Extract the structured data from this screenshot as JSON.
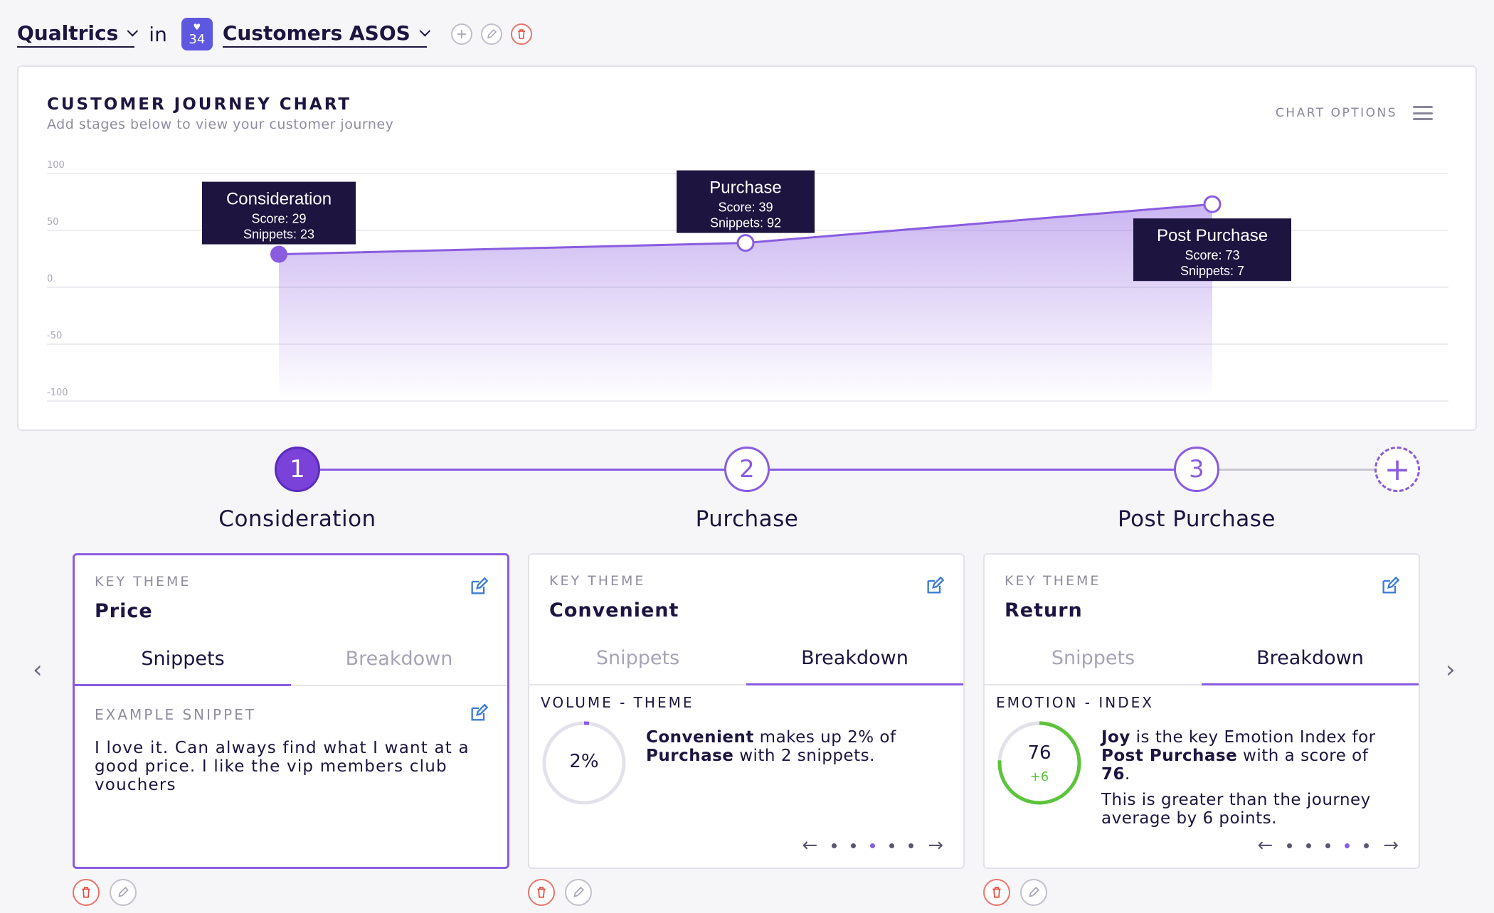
{
  "header": {
    "org": "Qualtrics",
    "in_word": "in",
    "badge_count": "34",
    "project": "Customers ASOS"
  },
  "chart": {
    "title": "CUSTOMER JOURNEY CHART",
    "subtitle": "Add stages below to view your customer journey",
    "options_label": "CHART OPTIONS"
  },
  "chart_data": {
    "type": "area",
    "title": "CUSTOMER JOURNEY CHART",
    "xlabel": "",
    "ylabel": "",
    "ylim": [
      -100,
      100
    ],
    "y_ticks": [
      "100",
      "50",
      "0",
      "-50",
      "-100"
    ],
    "categories": [
      "Consideration",
      "Purchase",
      "Post Purchase"
    ],
    "series": [
      {
        "values": [
          29,
          39,
          73
        ]
      }
    ],
    "annotations": [
      {
        "stage": "Consideration",
        "score_text": "Score: 29",
        "snippets_text": "Snippets: 23"
      },
      {
        "stage": "Purchase",
        "score_text": "Score: 39",
        "snippets_text": "Snippets: 92"
      },
      {
        "stage": "Post Purchase",
        "score_text": "Score: 73",
        "snippets_text": "Snippets: 7"
      }
    ],
    "grid": true,
    "accent": "#8a5ce0",
    "tooltip_bg": "#1d1440"
  },
  "stepper": {
    "steps": [
      {
        "num": "1",
        "label": "Consideration"
      },
      {
        "num": "2",
        "label": "Purchase"
      },
      {
        "num": "3",
        "label": "Post Purchase"
      }
    ],
    "add_symbol": "+"
  },
  "cards": [
    {
      "key_theme_label": "KEY THEME",
      "key_theme": "Price",
      "tabs": [
        "Snippets",
        "Breakdown"
      ],
      "active_tab": 0,
      "section_label": "EXAMPLE SNIPPET",
      "snippet": "I love it. Can always find what I want at a good price. I like the vip members club vouchers"
    },
    {
      "key_theme_label": "KEY THEME",
      "key_theme": "Convenient",
      "tabs": [
        "Snippets",
        "Breakdown"
      ],
      "active_tab": 1,
      "section_label": "VOLUME - THEME",
      "metric": "2%",
      "metric_fraction": 0.02,
      "text_bold1": "Convenient",
      "text_mid": " makes up 2% of ",
      "text_bold2": "Purchase",
      "text_end": " with 2 snippets.",
      "pager_active": 3
    },
    {
      "key_theme_label": "KEY THEME",
      "key_theme": "Return",
      "tabs": [
        "Snippets",
        "Breakdown"
      ],
      "active_tab": 1,
      "section_label": "EMOTION - INDEX",
      "metric": "76",
      "metric_delta": "+6",
      "metric_fraction": 0.76,
      "text_bold1": "Joy",
      "text_mid": " is the key Emotion Index for ",
      "text_bold2": "Post Purchase",
      "text_mid2": " with a score of ",
      "text_bold3": "76",
      "text_end": ".",
      "text2": "This is greater than the journey average by 6 points.",
      "pager_active": 4
    }
  ],
  "colors": {
    "accent": "#8a5ce0",
    "dark": "#1d1440",
    "green": "#5cc43a",
    "red": "#e04a3c",
    "link_blue": "#3b7cd6"
  }
}
